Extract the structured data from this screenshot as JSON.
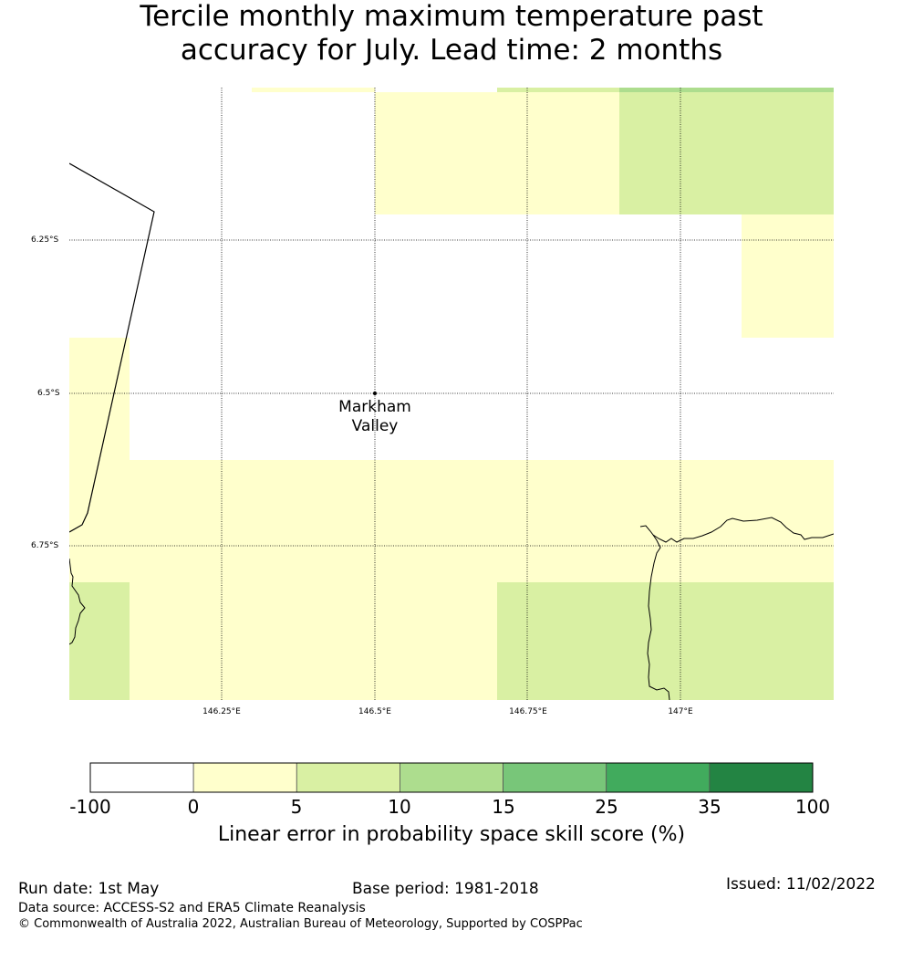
{
  "title_lines": [
    "Tercile monthly maximum temperature past",
    "accuracy for July. Lead time: 2 months"
  ],
  "map": {
    "lon_range": [
      146.0,
      147.5
    ],
    "lat_range": [
      -6.0,
      -7.0
    ],
    "lat_labels": [
      "6.25°S",
      "6.5°S",
      "6.75°S"
    ],
    "lon_labels": [
      "146.25°E",
      "146.5°E",
      "146.75°E",
      "147°E"
    ],
    "place": {
      "name_lines": [
        "Markham",
        "Valley"
      ],
      "lon": 146.5,
      "lat": -6.5
    },
    "colors": {
      "none": "#ffffff",
      "low": "#ffffcc",
      "mid": "#d9f0a3",
      "high": "#addd8e"
    }
  },
  "colorbar": {
    "tick_labels": [
      "-100",
      "0",
      "5",
      "10",
      "15",
      "25",
      "35",
      "100"
    ],
    "colors": [
      "#ffffff",
      "#ffffcc",
      "#d9f0a3",
      "#addd8e",
      "#78c679",
      "#41ab5d",
      "#238443"
    ],
    "label": "Linear error in probability space skill score (%)"
  },
  "footer": {
    "run_date": "Run date: 1st May",
    "base_period": "Base period: 1981-2018",
    "issued": "Issued: 11/02/2022",
    "data_source": "Data source: ACCESS-S2 and ERA5 Climate Reanalysis",
    "copyright": "© Commonwealth of Australia 2022, Australian Bureau of Meteorology, Supported by COSPPac"
  }
}
